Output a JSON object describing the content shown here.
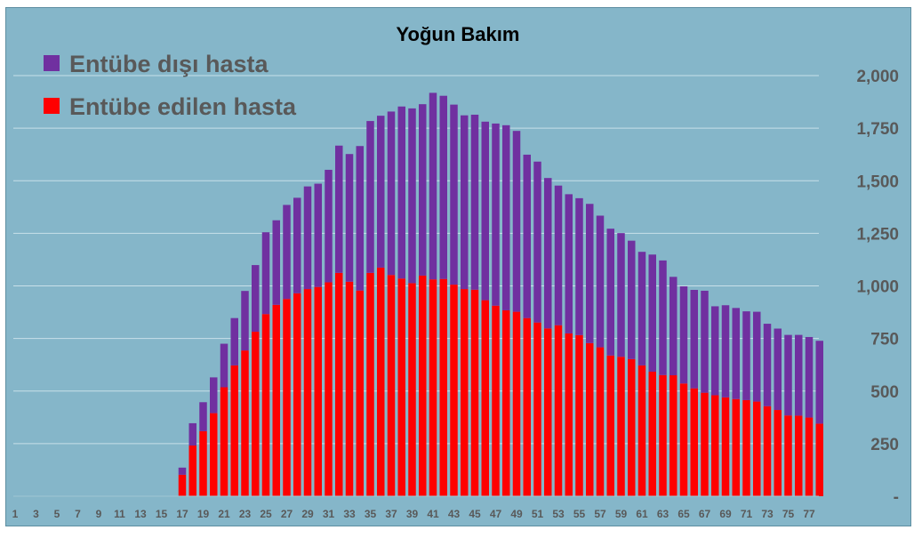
{
  "chart_data": {
    "type": "bar",
    "stacked": true,
    "title": "Yoğun Bakım",
    "xlabel": "",
    "ylabel": "",
    "ylim": [
      0,
      2000
    ],
    "y_ticks": [
      0,
      250,
      500,
      750,
      1000,
      1250,
      1500,
      1750,
      2000
    ],
    "y_tick_labels": [
      "-",
      "250",
      "500",
      "750",
      "1,000",
      "1,250",
      "1,500",
      "1,750",
      "2,000"
    ],
    "y_axis_side": "right",
    "grid": true,
    "legend_position": "top-left",
    "x_tick_labels": [
      "1",
      "3",
      "5",
      "7",
      "9",
      "11",
      "13",
      "15",
      "17",
      "19",
      "21",
      "23",
      "25",
      "27",
      "29",
      "31",
      "33",
      "35",
      "37",
      "39",
      "41",
      "43",
      "45",
      "47",
      "49",
      "51",
      "53",
      "55",
      "57",
      "59",
      "61",
      "63",
      "65",
      "67",
      "69",
      "71",
      "73",
      "75",
      "77"
    ],
    "categories": [
      "1",
      "2",
      "3",
      "4",
      "5",
      "6",
      "7",
      "8",
      "9",
      "10",
      "11",
      "12",
      "13",
      "14",
      "15",
      "16",
      "17",
      "18",
      "19",
      "20",
      "21",
      "22",
      "23",
      "24",
      "25",
      "26",
      "27",
      "28",
      "29",
      "30",
      "31",
      "32",
      "33",
      "34",
      "35",
      "36",
      "37",
      "38",
      "39",
      "40",
      "41",
      "42",
      "43",
      "44",
      "45",
      "46",
      "47",
      "48",
      "49",
      "50",
      "51",
      "52",
      "53",
      "54",
      "55",
      "56",
      "57",
      "58",
      "59",
      "60",
      "61",
      "62",
      "63",
      "64",
      "65",
      "66",
      "67",
      "68",
      "69",
      "70",
      "71",
      "72",
      "73",
      "74",
      "75",
      "76",
      "77",
      "78"
    ],
    "series": [
      {
        "name": "Entübe edilen hasta",
        "color": "#FF0000",
        "values": [
          0,
          0,
          0,
          0,
          0,
          0,
          0,
          0,
          0,
          0,
          0,
          0,
          0,
          0,
          0,
          0,
          102,
          241,
          309,
          395,
          518,
          622,
          693,
          782,
          866,
          910,
          938,
          965,
          985,
          995,
          1017,
          1062,
          1020,
          978,
          1062,
          1087,
          1052,
          1035,
          1013,
          1049,
          1031,
          1033,
          1006,
          985,
          982,
          932,
          906,
          884,
          877,
          847,
          826,
          798,
          813,
          774,
          766,
          728,
          708,
          669,
          663,
          652,
          622,
          592,
          576,
          575,
          536,
          513,
          492,
          480,
          470,
          462,
          457,
          450,
          428,
          410,
          384,
          383,
          374,
          345
        ]
      },
      {
        "name": "Entübe dışı hasta",
        "color": "#7030A0",
        "values": [
          0,
          0,
          0,
          0,
          0,
          0,
          0,
          0,
          0,
          0,
          0,
          0,
          0,
          0,
          0,
          0,
          34,
          106,
          138,
          170,
          207,
          225,
          283,
          317,
          389,
          402,
          447,
          454,
          488,
          491,
          535,
          605,
          607,
          687,
          722,
          722,
          777,
          818,
          831,
          815,
          887,
          871,
          856,
          826,
          832,
          849,
          866,
          880,
          860,
          777,
          765,
          715,
          664,
          662,
          651,
          662,
          626,
          603,
          588,
          563,
          540,
          557,
          545,
          468,
          462,
          468,
          485,
          423,
          438,
          433,
          422,
          427,
          392,
          387,
          383,
          384,
          383,
          394
        ]
      }
    ]
  }
}
